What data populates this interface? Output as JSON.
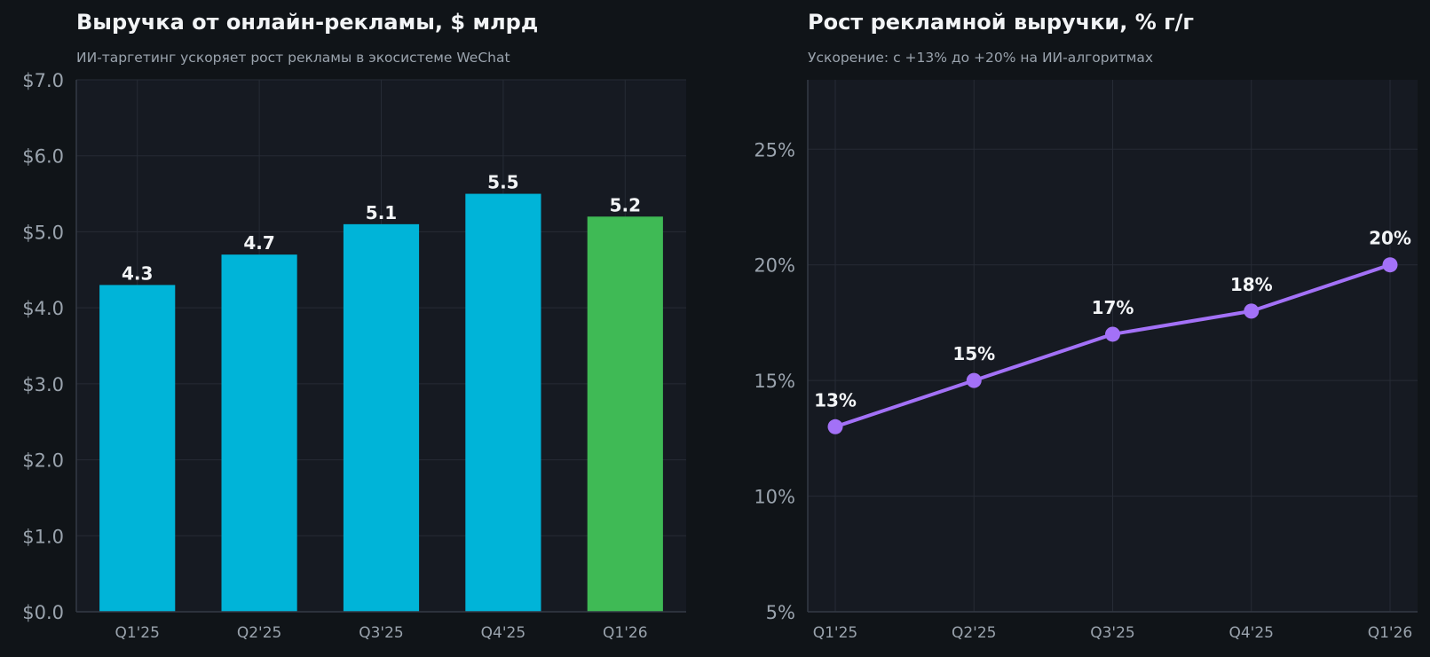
{
  "colors": {
    "background": "#101418",
    "plot_bg": "#161a22",
    "grid": "#262b35",
    "axis": "#343a45",
    "bar": "#00b4d8",
    "bar_highlight": "#3fba55",
    "line": "#a371f7",
    "text": "#f2f4f6",
    "muted": "#9aa3ad"
  },
  "left_panel": {
    "title": "Выручка от онлайн-рекламы, $ млрд",
    "subtitle": "ИИ-таргетинг ускоряет рост рекламы в экосистеме WeChat"
  },
  "right_panel": {
    "title": "Рост рекламной выручки, % г/г",
    "subtitle": "Ускорение: с +13% до +20% на ИИ-алгоритмах"
  },
  "chart_data": [
    {
      "type": "bar",
      "title": "Выручка от онлайн-рекламы, $ млрд",
      "subtitle": "ИИ-таргетинг ускоряет рост рекламы в экосистеме WeChat",
      "categories": [
        "Q1'25",
        "Q2'25",
        "Q3'25",
        "Q4'25",
        "Q1'26"
      ],
      "values": [
        4.3,
        4.7,
        5.1,
        5.5,
        5.2
      ],
      "data_labels": [
        "4.3",
        "4.7",
        "5.1",
        "5.5",
        "5.2"
      ],
      "highlight_index": 4,
      "ylim": [
        0,
        7
      ],
      "yticks": [
        0,
        1,
        2,
        3,
        4,
        5,
        6,
        7
      ],
      "ytick_labels": [
        "$0.0",
        "$1.0",
        "$2.0",
        "$3.0",
        "$4.0",
        "$5.0",
        "$6.0",
        "$7.0"
      ],
      "xlabel": "",
      "ylabel": "",
      "grid": true
    },
    {
      "type": "line",
      "title": "Рост рекламной выручки, % г/г",
      "subtitle": "Ускорение: с +13% до +20% на ИИ-алгоритмах",
      "categories": [
        "Q1'25",
        "Q2'25",
        "Q3'25",
        "Q4'25",
        "Q1'26"
      ],
      "values": [
        13,
        15,
        17,
        18,
        20
      ],
      "data_labels": [
        "13%",
        "15%",
        "17%",
        "18%",
        "20%"
      ],
      "ylim": [
        5,
        28
      ],
      "yticks": [
        5,
        10,
        15,
        20,
        25
      ],
      "ytick_labels": [
        "5%",
        "10%",
        "15%",
        "20%",
        "25%"
      ],
      "xlabel": "",
      "ylabel": "",
      "grid": true
    }
  ]
}
